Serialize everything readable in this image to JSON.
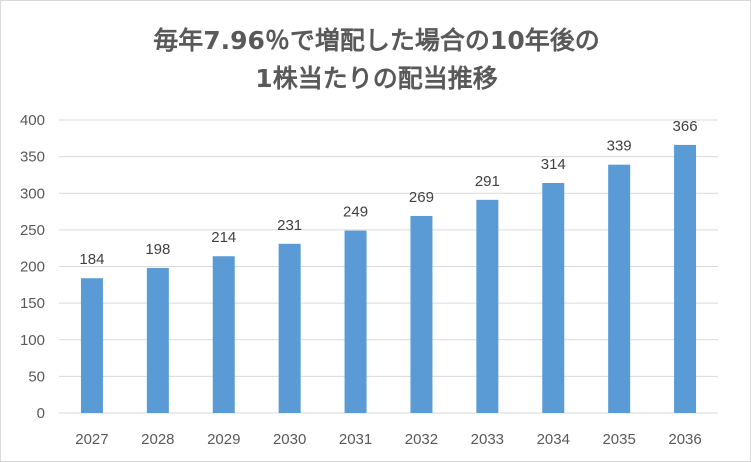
{
  "chart_data": {
    "type": "bar",
    "title_lines": [
      "毎年7.96％で増配した場合の10年後の",
      "1株当たりの配当推移"
    ],
    "categories": [
      "2027",
      "2028",
      "2029",
      "2030",
      "2031",
      "2032",
      "2033",
      "2034",
      "2035",
      "2036"
    ],
    "values": [
      184,
      198,
      214,
      231,
      249,
      269,
      291,
      314,
      339,
      366
    ],
    "ylim": [
      0,
      400
    ],
    "yticks": [
      0,
      50,
      100,
      150,
      200,
      250,
      300,
      350,
      400
    ],
    "grid": true,
    "legend": "none",
    "bar_color": "#5b9bd5",
    "grid_color": "#d9d9d9",
    "text_color": "#595959"
  }
}
